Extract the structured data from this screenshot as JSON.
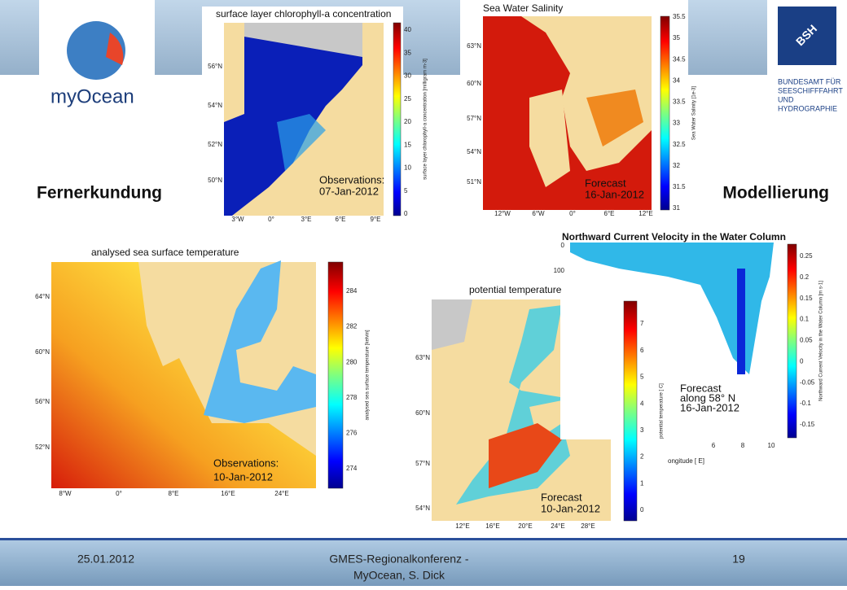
{
  "logos": {
    "myocean": "myOcean",
    "bsh_mark": "BSH",
    "bsh_name": [
      "BUNDESAMT FÜR",
      "SEESCHIFFFAHRT",
      "UND",
      "HYDROGRAPHIE"
    ]
  },
  "labels": {
    "left": "Fernerkundung",
    "right": "Modellierung"
  },
  "maps": [
    {
      "title": "surface layer chlorophyll-a concentration",
      "annotation": [
        "Observations:",
        "07-Jan-2012"
      ],
      "yticks": [
        "56°N",
        "54°N",
        "52°N",
        "50°N"
      ],
      "xticks": [
        "3°W",
        "0°",
        "3°E",
        "6°E",
        "9°E"
      ],
      "colorbar": {
        "ticks": [
          40,
          35,
          30,
          25,
          20,
          15,
          10,
          5,
          0
        ],
        "label": "surface layer chlorophyll-a concentration [milligram m-3]"
      }
    },
    {
      "title": "Sea Water Salinity",
      "annotation": [
        "Forecast",
        "16-Jan-2012"
      ],
      "yticks": [
        "63°N",
        "60°N",
        "57°N",
        "54°N",
        "51°N"
      ],
      "xticks": [
        "12°W",
        "6°W",
        "0°",
        "6°E",
        "12°E"
      ],
      "colorbar": {
        "ticks": [
          35.5,
          35,
          34.5,
          34,
          33.5,
          33,
          32.5,
          32,
          31.5,
          31
        ],
        "label": "Sea Water Salinity [1e-3]"
      }
    },
    {
      "title": "analysed sea surface temperature",
      "annotation": [
        "Observations:",
        "10-Jan-2012"
      ],
      "yticks": [
        "64°N",
        "60°N",
        "56°N",
        "52°N"
      ],
      "xticks": [
        "8°W",
        "0°",
        "8°E",
        "16°E",
        "24°E"
      ],
      "colorbar": {
        "ticks": [
          284,
          282,
          280,
          278,
          276,
          274
        ],
        "label": "analysed sea surface temperature [kelvin]"
      }
    },
    {
      "title": "potential temperature",
      "annotation": [
        "Forecast",
        "10-Jan-2012"
      ],
      "yticks": [
        "63°N",
        "60°N",
        "57°N",
        "54°N"
      ],
      "xticks": [
        "12°E",
        "16°E",
        "20°E",
        "24°E",
        "28°E"
      ],
      "colorbar": {
        "ticks": [
          7,
          6,
          5,
          4,
          3,
          2,
          1,
          0
        ],
        "label": "potential temperature [ C]"
      }
    },
    {
      "title": "Northward Current Velocity in the Water Column",
      "annotation": [
        "Forecast",
        "along 58° N",
        "16-Jan-2012"
      ],
      "yticks": [
        "0",
        "100"
      ],
      "xticks": [
        "6",
        "8",
        "10"
      ],
      "xlabel": "ongitude [ E]",
      "colorbar": {
        "ticks": [
          0.25,
          0.2,
          0.15,
          0.1,
          0.05,
          0,
          -0.05,
          -0.1,
          -0.15
        ],
        "label": "Northward Current Velocity in the Water Column [m s-1]"
      }
    }
  ],
  "footer": {
    "date": "25.01.2012",
    "event": [
      "GMES-Regionalkonferenz -",
      "MyOcean, S. Dick"
    ],
    "page": "19"
  }
}
